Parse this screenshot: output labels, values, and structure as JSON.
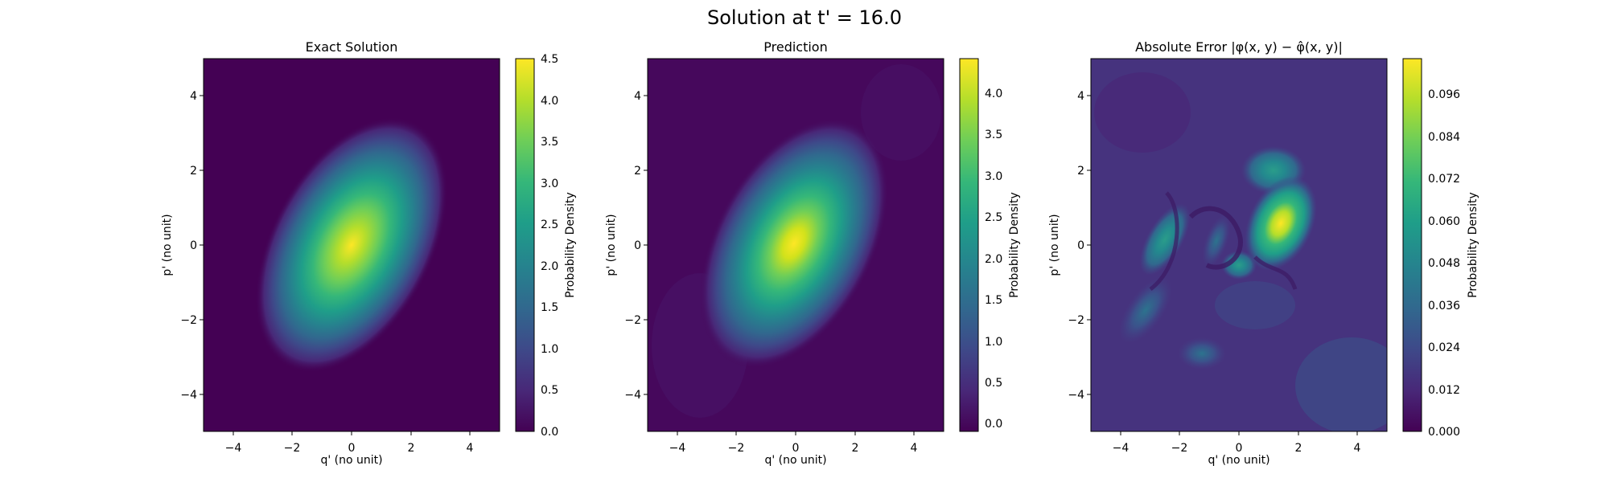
{
  "figure": {
    "title": "Solution at t' = 16.0"
  },
  "chart_data": [
    {
      "type": "heatmap",
      "title": "Exact Solution",
      "xlabel": "q' (no unit)",
      "ylabel": "p' (no unit)",
      "xlim": [
        -5,
        5
      ],
      "ylim": [
        -5,
        5
      ],
      "x_ticks": [
        -4,
        -2,
        0,
        2,
        4
      ],
      "y_ticks": [
        -4,
        -2,
        0,
        2,
        4
      ],
      "colorbar_label": "Probability Density",
      "colorbar_range": [
        0.0,
        4.5
      ],
      "colorbar_ticks": [
        "0.0",
        "0.5",
        "1.0",
        "1.5",
        "2.0",
        "2.5",
        "3.0",
        "3.5",
        "4.0",
        "4.5"
      ],
      "colormap": "viridis",
      "peak": {
        "q": 0.0,
        "p": 0.0,
        "value": 4.5
      },
      "grid": false
    },
    {
      "type": "heatmap",
      "title": "Prediction",
      "xlabel": "q' (no unit)",
      "ylabel": "p' (no unit)",
      "xlim": [
        -5,
        5
      ],
      "ylim": [
        -5,
        5
      ],
      "x_ticks": [
        -4,
        -2,
        0,
        2,
        4
      ],
      "y_ticks": [
        -4,
        -2,
        0,
        2,
        4
      ],
      "colorbar_label": "Probability Density",
      "colorbar_range": [
        -0.1,
        4.4
      ],
      "colorbar_ticks": [
        "0.0",
        "0.5",
        "1.0",
        "1.5",
        "2.0",
        "2.5",
        "3.0",
        "3.5",
        "4.0"
      ],
      "colormap": "viridis",
      "peak": {
        "q": 0.0,
        "p": 0.0,
        "value": 4.4
      },
      "grid": false
    },
    {
      "type": "heatmap",
      "title": "Absolute Error |φ(x, y) − φ̂(x, y)|",
      "xlabel": "q' (no unit)",
      "ylabel": "p' (no unit)",
      "xlim": [
        -5,
        5
      ],
      "ylim": [
        -5,
        5
      ],
      "x_ticks": [
        -4,
        -2,
        0,
        2,
        4
      ],
      "y_ticks": [
        -4,
        -2,
        0,
        2,
        4
      ],
      "colorbar_label": "Probability Density",
      "colorbar_range": [
        0.0,
        0.106
      ],
      "colorbar_ticks": [
        "0.000",
        "0.012",
        "0.024",
        "0.036",
        "0.048",
        "0.060",
        "0.072",
        "0.084",
        "0.096"
      ],
      "colormap": "viridis",
      "hotspots": [
        {
          "q": 1.4,
          "p": 0.6,
          "value": 0.104
        },
        {
          "q": 0.4,
          "p": 1.5,
          "value": 0.06
        },
        {
          "q": -2.5,
          "p": 0.0,
          "value": 0.05
        },
        {
          "q": 0.0,
          "p": -0.6,
          "value": 0.06
        },
        {
          "q": -3.3,
          "p": -2.0,
          "value": 0.04
        },
        {
          "q": -0.3,
          "p": 0.2,
          "value": 0.04
        }
      ],
      "grid": false
    }
  ],
  "colors": {
    "viridis": [
      "#440154",
      "#482878",
      "#3e4989",
      "#31688e",
      "#26828e",
      "#1f9e89",
      "#35b779",
      "#6ece58",
      "#b5de2b",
      "#fde725"
    ]
  }
}
